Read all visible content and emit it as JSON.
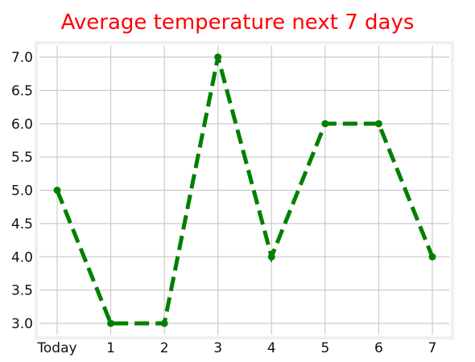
{
  "chart_data": {
    "type": "line",
    "title": "Average temperature next 7 days",
    "xlabel": "",
    "ylabel": "",
    "categories": [
      "Today",
      "1",
      "2",
      "3",
      "4",
      "5",
      "6",
      "7"
    ],
    "series": [
      {
        "values": [
          5.0,
          3.0,
          3.0,
          7.0,
          4.0,
          6.0,
          6.0,
          4.0
        ],
        "color": "#007f00",
        "line_style": "dashed",
        "marker": "circle"
      }
    ],
    "ylim": [
      2.8,
      7.2
    ],
    "yticks": [
      "3.0",
      "3.5",
      "4.0",
      "4.5",
      "5.0",
      "5.5",
      "6.0",
      "6.5",
      "7.0"
    ],
    "grid": true,
    "legend": "none",
    "colors": {
      "title": "#ff0000",
      "grid": "#cbcbcb",
      "frame": "#f0f0f0"
    }
  }
}
